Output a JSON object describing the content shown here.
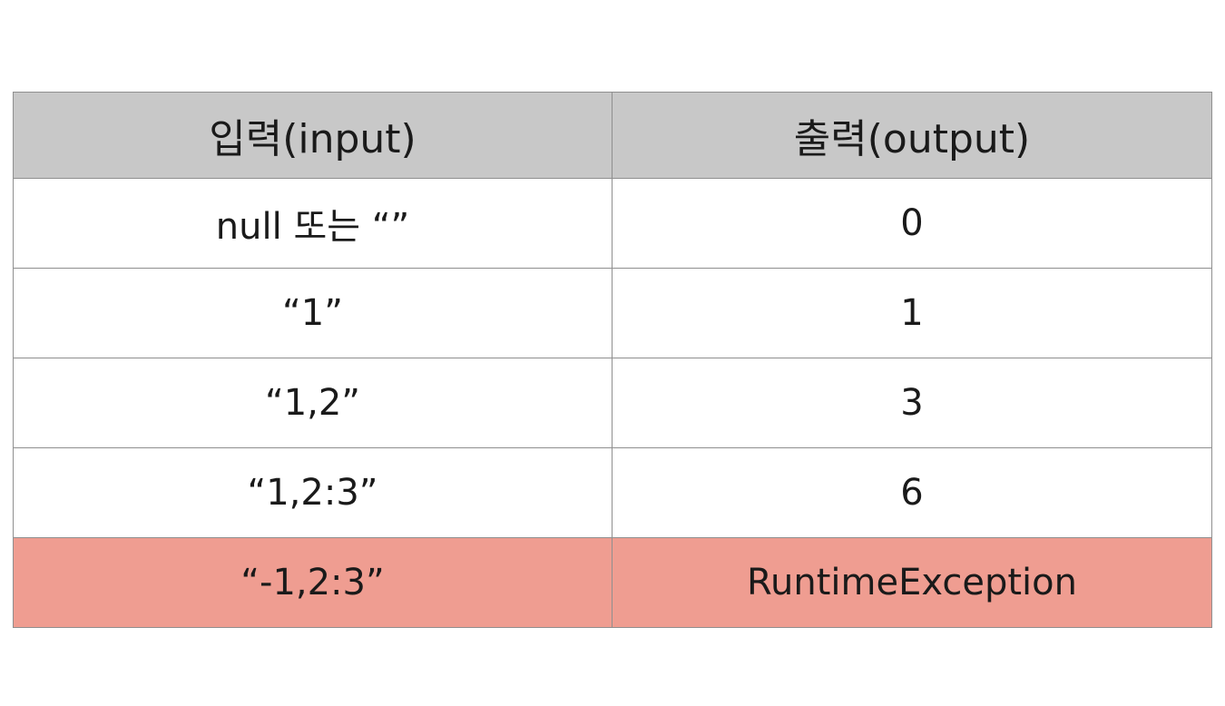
{
  "table": {
    "columns": [
      "입력(input)",
      "출력(output)"
    ],
    "rows": [
      {
        "input": "null 또는 “”",
        "output": "0",
        "highlighted": false
      },
      {
        "input": "“1”",
        "output": "1",
        "highlighted": false
      },
      {
        "input": "“1,2”",
        "output": "3",
        "highlighted": false
      },
      {
        "input": "“1,2:3”",
        "output": "6",
        "highlighted": false
      },
      {
        "input": "“-1,2:3”",
        "output": "RuntimeException",
        "highlighted": true
      }
    ]
  },
  "colors": {
    "header_bg": "#c8c8c8",
    "highlight_row_bg": "#ef9d91",
    "border": "#8f8f8f"
  }
}
